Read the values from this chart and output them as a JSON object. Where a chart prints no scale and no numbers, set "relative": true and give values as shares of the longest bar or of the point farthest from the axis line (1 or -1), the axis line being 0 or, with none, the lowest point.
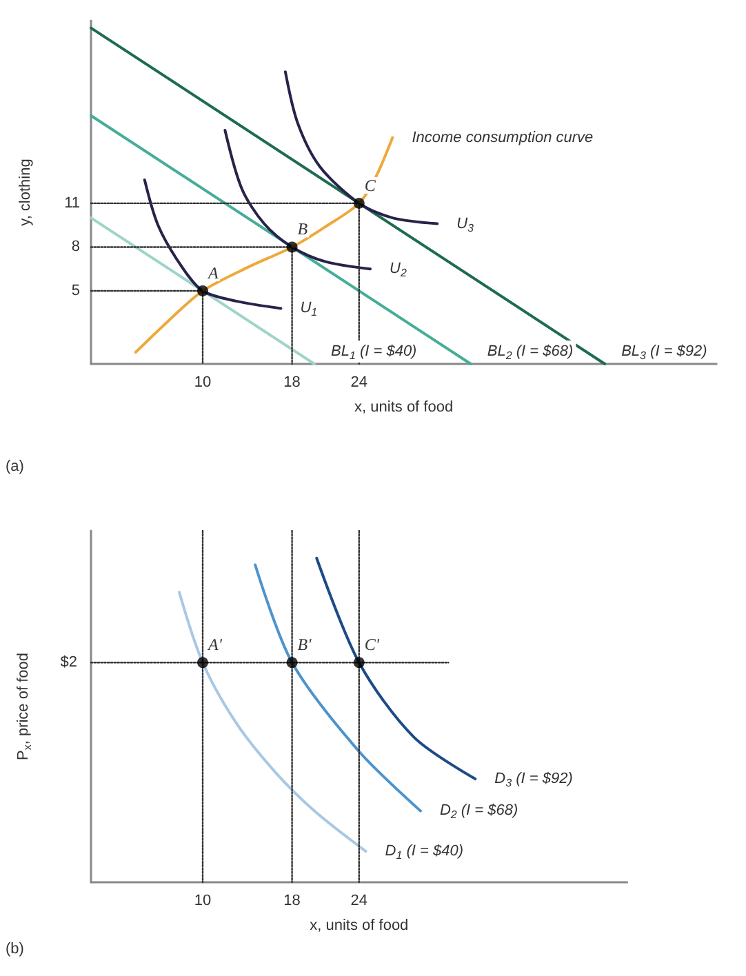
{
  "chart_data": [
    {
      "type": "line",
      "xlabel": "x, units of food",
      "ylabel": "y, clothing",
      "xlim": [
        0,
        56
      ],
      "ylim": [
        0,
        23.5
      ],
      "xticks": [
        10,
        18,
        24
      ],
      "yticks": [
        5,
        8,
        11
      ],
      "grid": false,
      "legend": false,
      "marker": "none",
      "series": [
        {
          "name": "BL$_{1}$ (I = $40)",
          "color": "#9fd4c9",
          "x": [
            0,
            20
          ],
          "values": [
            10,
            0
          ]
        },
        {
          "name": "BL$_{2}$ (I = $68)",
          "color": "#45ad98",
          "x": [
            0,
            34
          ],
          "values": [
            17,
            0
          ]
        },
        {
          "name": "BL$_{3}$ (I = $92)",
          "color": "#1d6b52",
          "x": [
            0,
            46
          ],
          "values": [
            23,
            0
          ]
        },
        {
          "name": "U$_{1}$",
          "color": "#27234a",
          "x": [
            4.8,
            6,
            8,
            10,
            13,
            17
          ],
          "values": [
            12.6,
            9.5,
            6.8,
            5,
            4.3,
            3.8
          ]
        },
        {
          "name": "U$_{2}$",
          "color": "#27234a",
          "x": [
            12,
            13.5,
            15.5,
            18,
            21,
            25
          ],
          "values": [
            16,
            12,
            9.6,
            8,
            7,
            6.5
          ]
        },
        {
          "name": "U$_{3}$",
          "color": "#27234a",
          "x": [
            17.4,
            18.5,
            20.5,
            24,
            27,
            31
          ],
          "values": [
            20,
            16.5,
            13.5,
            11,
            10,
            9.6
          ]
        },
        {
          "name": "Income consumption curve",
          "color": "#eea93a",
          "x": [
            4,
            7,
            10,
            14,
            18,
            21,
            24,
            25.5,
            27
          ],
          "values": [
            0.8,
            3,
            5,
            6.6,
            8,
            9.4,
            11,
            12.8,
            15.5
          ]
        },
        {
          "color": "#333333",
          "line_style": "dotted",
          "x": [
            0,
            10,
            10
          ],
          "values": [
            5,
            5,
            0
          ]
        },
        {
          "color": "#333333",
          "line_style": "dotted",
          "x": [
            0,
            18,
            18
          ],
          "values": [
            8,
            8,
            0
          ]
        },
        {
          "color": "#333333",
          "line_style": "dotted",
          "x": [
            0,
            24,
            24
          ],
          "values": [
            11,
            11,
            0
          ]
        },
        {
          "type": "scatter",
          "marker": "circle",
          "color": "#000000",
          "x": [
            10,
            18,
            24
          ],
          "values": [
            5,
            8,
            11
          ]
        }
      ],
      "annotations": [
        {
          "text": "A",
          "x": 10,
          "y": 5
        },
        {
          "text": "B",
          "x": 18,
          "y": 8
        },
        {
          "text": "C",
          "x": 24,
          "y": 11
        },
        "(a)"
      ]
    },
    {
      "type": "line",
      "relative": true,
      "xlabel": "x, units of food",
      "ylabel": "P$_{x}$, price of food",
      "xlim": [
        0,
        48
      ],
      "xticks": [
        10,
        18,
        24
      ],
      "grid": false,
      "legend": false,
      "marker": "none",
      "series": [
        {
          "name": "D$_{1}$ (I = $40)",
          "color": "#a8c8e4",
          "x": [
            7.9,
            10,
            13,
            16.5,
            20,
            24.6
          ],
          "values": [
            0.825,
            0.625,
            0.453,
            0.313,
            0.203,
            0.088
          ]
        },
        {
          "name": "D$_{2}$ (I = $68)",
          "color": "#4d93cc",
          "x": [
            14.7,
            18,
            24,
            29.5
          ],
          "values": [
            0.903,
            0.625,
            0.372,
            0.203
          ]
        },
        {
          "name": "D$_{3}$ (I = $92)",
          "color": "#1c4b86",
          "x": [
            20.2,
            24,
            28.9,
            34.4
          ],
          "values": [
            0.922,
            0.625,
            0.413,
            0.294
          ]
        },
        {
          "color": "#333333",
          "line_style": "dotted",
          "x": [
            0,
            32
          ],
          "values": [
            0.625,
            0.625
          ]
        },
        {
          "color": "#333333",
          "line_style": "dotted",
          "x": [
            10,
            10
          ],
          "values": [
            1,
            0
          ]
        },
        {
          "color": "#333333",
          "line_style": "dotted",
          "x": [
            18,
            18
          ],
          "values": [
            1,
            0
          ]
        },
        {
          "color": "#333333",
          "line_style": "dotted",
          "x": [
            24,
            24
          ],
          "values": [
            1,
            0
          ]
        },
        {
          "type": "scatter",
          "marker": "circle",
          "color": "#000000",
          "x": [
            10,
            18,
            24
          ],
          "values": [
            0.625,
            0.625,
            0.625
          ]
        }
      ],
      "annotations": [
        {
          "text": "$2",
          "x": 0,
          "y": 0.625
        },
        {
          "text": "A'",
          "x": 10,
          "y": 0.625
        },
        {
          "text": "B'",
          "x": 18,
          "y": 0.625
        },
        {
          "text": "C'",
          "x": 24,
          "y": 0.625
        },
        "(b)"
      ]
    }
  ]
}
